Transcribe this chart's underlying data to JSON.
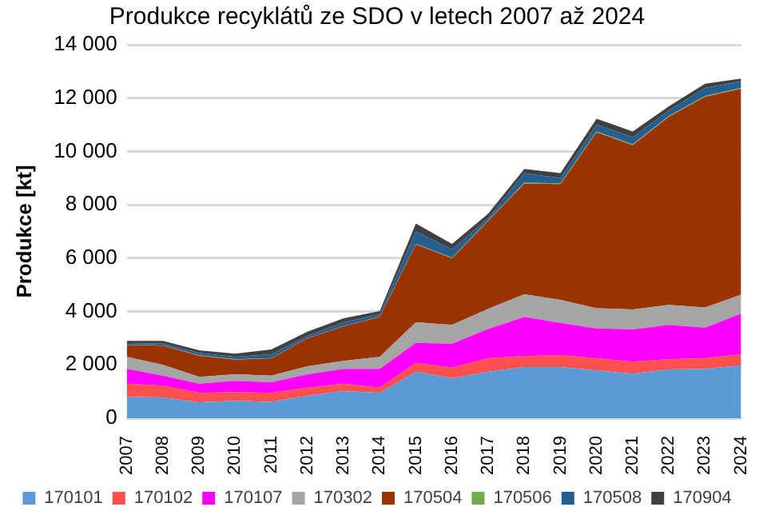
{
  "chart_data": {
    "type": "area",
    "stacked": true,
    "title": "Produkce recyklátů ze SDO v letech 2007 až 2024",
    "ylabel": "Produkce [kt]",
    "categories": [
      "2007",
      "2008",
      "2009",
      "2010",
      "2011",
      "2012",
      "2013",
      "2014",
      "2015",
      "2016",
      "2017",
      "2018",
      "2019",
      "2020",
      "2021",
      "2022",
      "2023",
      "2024"
    ],
    "series": [
      {
        "name": "170101",
        "color": "#5b9bd5",
        "values": [
          800,
          780,
          600,
          650,
          620,
          850,
          1020,
          950,
          1750,
          1500,
          1750,
          1920,
          1920,
          1790,
          1670,
          1830,
          1850,
          1980
        ]
      },
      {
        "name": "170102",
        "color": "#ff5050",
        "values": [
          500,
          440,
          350,
          330,
          330,
          300,
          280,
          200,
          330,
          400,
          500,
          410,
          450,
          460,
          450,
          380,
          400,
          420
        ]
      },
      {
        "name": "170107",
        "color": "#ff00ff",
        "values": [
          550,
          380,
          350,
          420,
          400,
          500,
          550,
          700,
          750,
          900,
          1100,
          1470,
          1210,
          1120,
          1210,
          1290,
          1150,
          1520
        ]
      },
      {
        "name": "170302",
        "color": "#a5a5a5",
        "values": [
          450,
          400,
          250,
          250,
          250,
          300,
          300,
          450,
          770,
          700,
          750,
          850,
          860,
          750,
          750,
          750,
          750,
          710
        ]
      },
      {
        "name": "170504",
        "color": "#993300",
        "values": [
          450,
          720,
          800,
          550,
          650,
          1050,
          1300,
          1500,
          2920,
          2500,
          3300,
          4150,
          4340,
          6600,
          6160,
          7050,
          7900,
          7720
        ]
      },
      {
        "name": "170506",
        "color": "#70ad47",
        "values": [
          10,
          10,
          10,
          10,
          10,
          10,
          10,
          10,
          20,
          20,
          20,
          30,
          30,
          30,
          30,
          30,
          30,
          30
        ]
      },
      {
        "name": "170508",
        "color": "#255e91",
        "values": [
          60,
          70,
          90,
          90,
          140,
          90,
          140,
          90,
          460,
          310,
          80,
          360,
          190,
          250,
          270,
          210,
          300,
          250
        ]
      },
      {
        "name": "170904",
        "color": "#404040",
        "values": [
          80,
          100,
          100,
          120,
          180,
          150,
          150,
          120,
          300,
          210,
          170,
          160,
          190,
          230,
          210,
          150,
          160,
          100
        ]
      }
    ],
    "ylim": [
      0,
      14000
    ],
    "yticks": [
      0,
      {
        "value": 2000,
        "label": "2 000"
      },
      {
        "value": 4000,
        "label": "4 000"
      },
      {
        "value": 6000,
        "label": "6 000"
      },
      {
        "value": 8000,
        "label": "8 000"
      },
      {
        "value": 10000,
        "label": "10 000"
      },
      {
        "value": 12000,
        "label": "12 000"
      },
      {
        "value": 14000,
        "label": "14 000"
      }
    ],
    "grid": "y",
    "legend": "bottom",
    "marker": "none"
  }
}
